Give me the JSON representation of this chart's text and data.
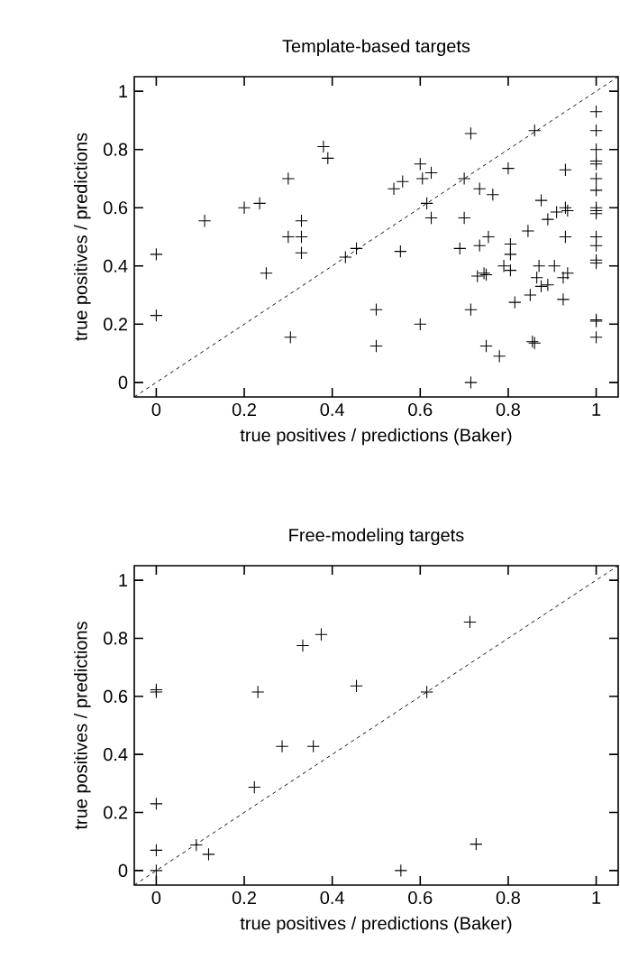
{
  "chart_data": [
    {
      "type": "scatter",
      "title": "Template-based targets",
      "xlabel": "true positives / predictions (Baker)",
      "ylabel": "true positives / predictions",
      "xlim": [
        -0.05,
        1.05
      ],
      "ylim": [
        -0.05,
        1.05
      ],
      "xticks": [
        0,
        0.2,
        0.4,
        0.6,
        0.8,
        1
      ],
      "yticks": [
        0,
        0.2,
        0.4,
        0.6,
        0.8,
        1
      ],
      "grid": false,
      "series": [
        {
          "color": "#000000",
          "marker": "cross",
          "x": [
            0,
            0,
            0.11,
            0.2,
            0.235,
            0.25,
            0.3,
            0.3,
            0.305,
            0.33,
            0.33,
            0.33,
            0.38,
            0.39,
            0.43,
            0.455,
            0.5,
            0.5,
            0.54,
            0.555,
            0.56,
            0.6,
            0.6,
            0.605,
            0.615,
            0.625,
            0.625,
            0.69,
            0.7,
            0.7,
            0.715,
            0.715,
            0.715,
            0.73,
            0.735,
            0.735,
            0.745,
            0.75,
            0.75,
            0.755,
            0.765,
            0.78,
            0.79,
            0.8,
            0.805,
            0.805,
            0.805,
            0.815,
            0.845,
            0.85,
            0.855,
            0.86,
            0.86,
            0.865,
            0.87,
            0.875,
            0.875,
            0.89,
            0.89,
            0.905,
            0.91,
            0.925,
            0.925,
            0.93,
            0.93,
            0.93,
            0.935,
            0.935,
            1,
            1,
            1,
            1,
            1,
            1,
            1,
            1,
            1,
            1,
            1,
            1,
            1,
            1,
            1,
            1,
            1
          ],
          "values": [
            0.44,
            0.23,
            0.555,
            0.6,
            0.615,
            0.375,
            0.7,
            0.5,
            0.155,
            0.555,
            0.5,
            0.445,
            0.81,
            0.77,
            0.43,
            0.46,
            0.25,
            0.125,
            0.665,
            0.45,
            0.69,
            0.75,
            0.2,
            0.7,
            0.615,
            0.565,
            0.72,
            0.46,
            0.565,
            0.7,
            0.855,
            0.25,
            0,
            0.365,
            0.47,
            0.665,
            0.375,
            0.125,
            0.37,
            0.5,
            0.645,
            0.09,
            0.4,
            0.735,
            0.475,
            0.44,
            0.385,
            0.275,
            0.52,
            0.3,
            0.14,
            0.865,
            0.135,
            0.36,
            0.4,
            0.33,
            0.625,
            0.335,
            0.56,
            0.4,
            0.585,
            0.285,
            0.36,
            0.73,
            0.5,
            0.6,
            0.59,
            0.375,
            0.93,
            0.865,
            0.8,
            0.76,
            0.75,
            0.7,
            0.66,
            0.6,
            0.59,
            0.58,
            0.5,
            0.47,
            0.42,
            0.41,
            0.215,
            0.21,
            0.155
          ]
        },
        {
          "type": "line",
          "color": "#000000",
          "line_style": "dashed",
          "marker": "none",
          "x": [
            -0.05,
            1.05
          ],
          "values": [
            -0.05,
            1.05
          ]
        }
      ]
    },
    {
      "type": "scatter",
      "title": "Free-modeling targets",
      "xlabel": "true positives / predictions (Baker)",
      "ylabel": "true positives / predictions",
      "xlim": [
        -0.05,
        1.05
      ],
      "ylim": [
        -0.05,
        1.05
      ],
      "xticks": [
        0,
        0.2,
        0.4,
        0.6,
        0.8,
        1
      ],
      "yticks": [
        0,
        0.2,
        0.4,
        0.6,
        0.8,
        1
      ],
      "grid": false,
      "series": [
        {
          "color": "#000000",
          "marker": "cross",
          "x": [
            0,
            0,
            0,
            0,
            0,
            0.091,
            0.119,
            0.223,
            0.231,
            0.286,
            0.333,
            0.357,
            0.375,
            0.455,
            0.556,
            0.615,
            0.713,
            0.727
          ],
          "values": [
            0.623,
            0.615,
            0.23,
            0.07,
            0,
            0.088,
            0.056,
            0.287,
            0.615,
            0.428,
            0.775,
            0.428,
            0.813,
            0.636,
            0,
            0.615,
            0.856,
            0.091
          ]
        },
        {
          "type": "line",
          "color": "#000000",
          "line_style": "dashed",
          "marker": "none",
          "x": [
            -0.05,
            1.05
          ],
          "values": [
            -0.05,
            1.05
          ]
        }
      ]
    }
  ]
}
